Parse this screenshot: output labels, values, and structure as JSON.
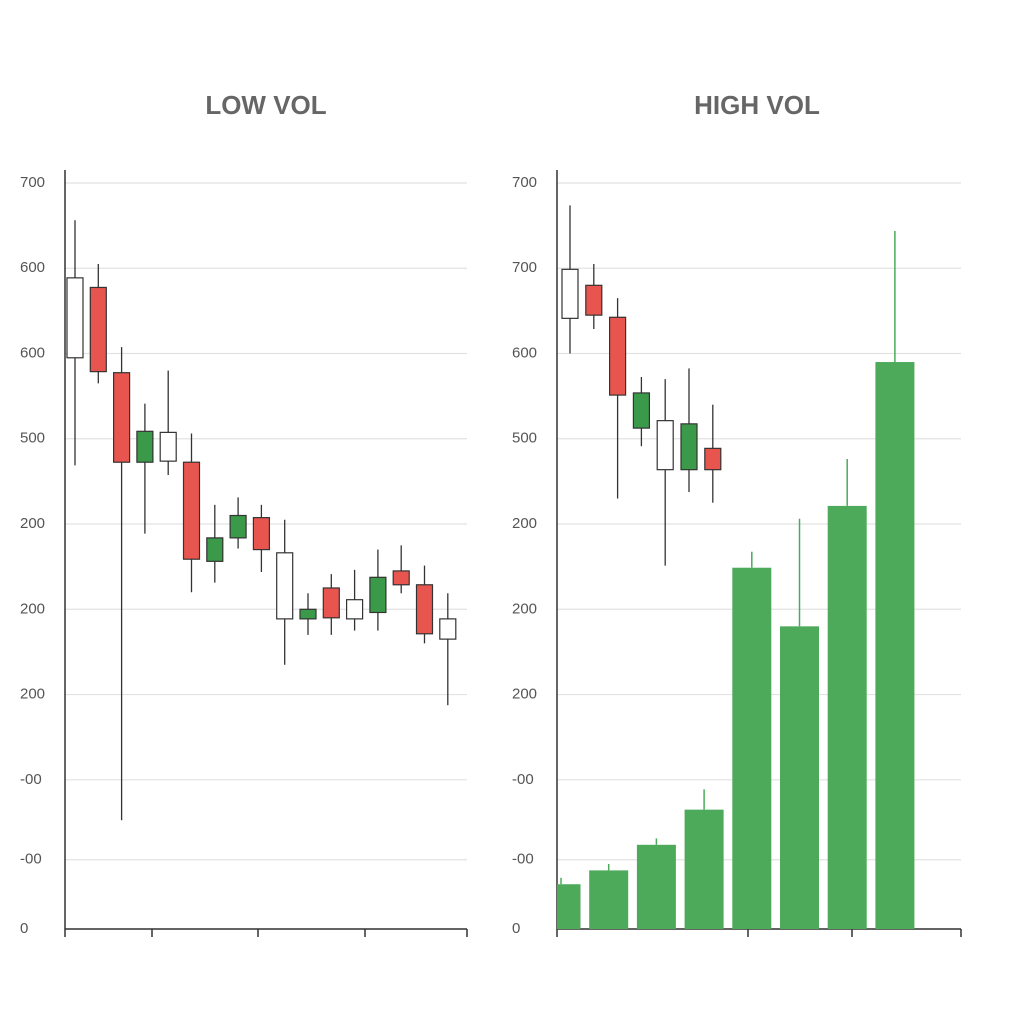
{
  "chart_data": [
    {
      "type": "candlestick",
      "title": "LOW VOL",
      "open": [
        536,
        602,
        522,
        438,
        439,
        438,
        345,
        367,
        386,
        291,
        291,
        320,
        291,
        297,
        336,
        323,
        272
      ],
      "high": [
        665,
        624,
        546,
        493,
        524,
        465,
        398,
        405,
        398,
        384,
        315,
        333,
        337,
        356,
        360,
        341,
        315
      ],
      "low": [
        435,
        512,
        102,
        371,
        426,
        316,
        325,
        357,
        335,
        248,
        276,
        276,
        280,
        280,
        315,
        268,
        210
      ],
      "close": [
        611,
        523,
        438,
        467,
        466,
        347,
        367,
        388,
        356,
        353,
        300,
        292,
        309,
        330,
        323,
        277,
        291
      ],
      "colors": [
        "#ffffff",
        "#e8554e",
        "#e8554e",
        "#3a9a4a",
        "#ffffff",
        "#e8554e",
        "#3a9a4a",
        "#3a9a4a",
        "#e8554e",
        "#ffffff",
        "#3a9a4a",
        "#e8554e",
        "#ffffff",
        "#3a9a4a",
        "#e8554e",
        "#e8554e",
        "#ffffff"
      ],
      "ylim": [
        0,
        700
      ],
      "yticks": [
        700,
        {
          "value": 620,
          "label": "600"
        },
        {
          "value": 540,
          "label": "600"
        },
        {
          "value": 460,
          "label": "500"
        },
        {
          "value": 380,
          "label": "200"
        },
        {
          "value": 300,
          "label": "200"
        },
        {
          "value": 220,
          "label": "200"
        },
        {
          "value": 140,
          "label": "-00"
        },
        {
          "value": 65,
          "label": "-00"
        },
        0
      ],
      "grid": true
    },
    {
      "type": "candlestick",
      "title": "HIGH VOL",
      "open": [
        573,
        604,
        574,
        470,
        431,
        431,
        451
      ],
      "high": [
        679,
        624,
        592,
        518,
        516,
        526,
        492
      ],
      "low": [
        540,
        563,
        404,
        453,
        341,
        410,
        400
      ],
      "close": [
        619,
        576,
        501,
        503,
        477,
        474,
        431
      ],
      "colors": [
        "#ffffff",
        "#e8554e",
        "#e8554e",
        "#3a9a4a",
        "#ffffff",
        "#3a9a4a",
        "#e8554e"
      ],
      "bars": {
        "values": [
          42,
          55,
          79,
          112,
          339,
          284,
          397,
          532
        ],
        "highs": [
          48,
          61,
          85,
          131,
          354,
          385,
          441,
          655
        ],
        "color": "#4caa5a"
      },
      "ylim": [
        0,
        700
      ],
      "yticks": [
        700,
        {
          "value": 620,
          "label": "700"
        },
        {
          "value": 540,
          "label": "600"
        },
        {
          "value": 460,
          "label": "500"
        },
        {
          "value": 380,
          "label": "200"
        },
        {
          "value": 300,
          "label": "200"
        },
        {
          "value": 220,
          "label": "200"
        },
        {
          "value": 140,
          "label": "-00"
        },
        {
          "value": 65,
          "label": "-00"
        },
        0
      ],
      "grid": true
    }
  ]
}
